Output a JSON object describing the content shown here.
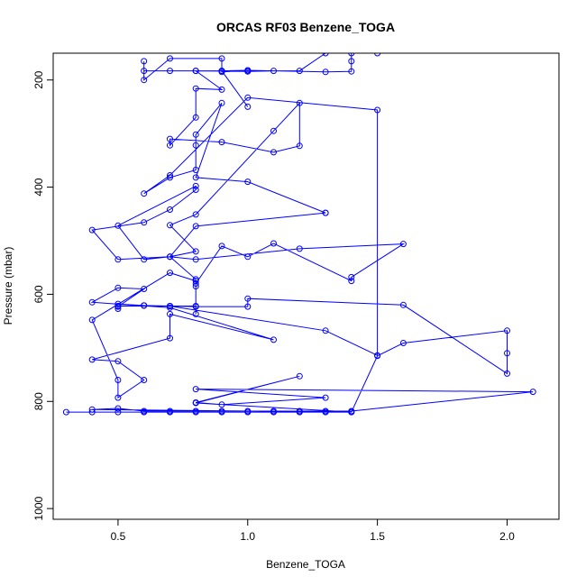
{
  "chart_data": {
    "type": "line",
    "title": "ORCAS RF03 Benzene_TOGA",
    "xlabel": "Benzene_TOGA",
    "ylabel": "Pressure (mbar)",
    "xlim": [
      0.25,
      2.2
    ],
    "ylim": [
      1020,
      150
    ],
    "y_reversed": true,
    "x_ticks": [
      0.5,
      1.0,
      1.5,
      2.0
    ],
    "x_tick_labels": [
      "0.5",
      "1.0",
      "1.5",
      "2.0"
    ],
    "y_ticks": [
      200,
      400,
      600,
      800,
      1000
    ],
    "y_tick_labels": [
      "200",
      "400",
      "600",
      "800",
      "1000"
    ],
    "grid": false,
    "legend": "none",
    "colors": {
      "series": "#0000ff",
      "axis": "#000000"
    },
    "series": [
      {
        "marker": "open-circle",
        "x": [
          0.3,
          0.4,
          0.5,
          0.6,
          0.7,
          0.8,
          0.9,
          1.0,
          1.1,
          1.2,
          1.3,
          1.4,
          0.4,
          0.5,
          0.6,
          0.7,
          0.8,
          0.9,
          1.0,
          1.1,
          1.2,
          1.3,
          1.4,
          2.1,
          0.8,
          1.3,
          0.9,
          0.8,
          1.2,
          0.8,
          1.4,
          1.5,
          1.6,
          2.0,
          2.0,
          2.0,
          1.6,
          1.0,
          1.0,
          0.8,
          0.7,
          0.5,
          0.5,
          0.6,
          0.6,
          0.7,
          0.8,
          0.8,
          0.8,
          0.8,
          0.7,
          0.5,
          0.4,
          0.6,
          0.7,
          0.8,
          0.8,
          0.5,
          0.6,
          0.7,
          0.8,
          1.2,
          1.6,
          1.4,
          1.4,
          1.1,
          1.0,
          0.9,
          0.8,
          0.8,
          0.7,
          0.4,
          0.5,
          0.5,
          0.6,
          0.5,
          0.4,
          0.7,
          0.7,
          1.1,
          0.7,
          0.4,
          0.5,
          0.6,
          0.5,
          0.5,
          0.5,
          0.6,
          0.7,
          1.3,
          1.5,
          1.5,
          1.0,
          0.7,
          0.6,
          0.7,
          0.8,
          0.8,
          0.8,
          0.9,
          0.8,
          1.0,
          1.3,
          1.3,
          0.8,
          0.7,
          0.8,
          0.7,
          0.8,
          1.1,
          1.2,
          1.2,
          1.1,
          0.9,
          0.7,
          0.7,
          0.8,
          0.8,
          0.9,
          0.8,
          1.0,
          1.1,
          1.2,
          1.3,
          1.5,
          1.4,
          1.4,
          1.4,
          1.3,
          1.0,
          1.0,
          0.9,
          0.8,
          0.7,
          0.6,
          0.6,
          0.6,
          0.7,
          0.9,
          0.9,
          1.0,
          0.9,
          1.0
        ],
        "y": [
          820,
          820,
          820,
          820,
          820,
          820,
          820,
          820,
          820,
          820,
          820,
          820,
          815,
          813,
          818,
          818,
          818,
          818,
          818,
          818,
          818,
          818,
          818,
          782,
          777,
          793,
          806,
          802,
          753,
          803,
          820,
          715,
          691,
          668,
          710,
          748,
          620,
          608,
          623,
          623,
          622,
          622,
          618,
          621,
          621,
          622,
          622,
          637,
          585,
          572,
          530,
          535,
          480,
          466,
          442,
          405,
          398,
          472,
          535,
          530,
          535,
          515,
          506,
          568,
          575,
          505,
          530,
          510,
          580,
          575,
          560,
          648,
          760,
          793,
          760,
          725,
          722,
          682,
          637,
          685,
          625,
          615,
          588,
          590,
          623,
          627,
          622,
          621,
          622,
          668,
          714,
          256,
          233,
          378,
          412,
          382,
          368,
          322,
          302,
          243,
          382,
          390,
          448,
          448,
          473,
          530,
          520,
          471,
          451,
          295,
          243,
          323,
          335,
          316,
          310,
          322,
          270,
          216,
          218,
          183,
          184,
          183,
          183,
          150,
          150,
          150,
          165,
          184,
          185,
          182,
          184,
          183,
          183,
          183,
          183,
          165,
          200,
          160,
          160,
          185,
          182,
          183,
          250
        ]
      }
    ]
  }
}
